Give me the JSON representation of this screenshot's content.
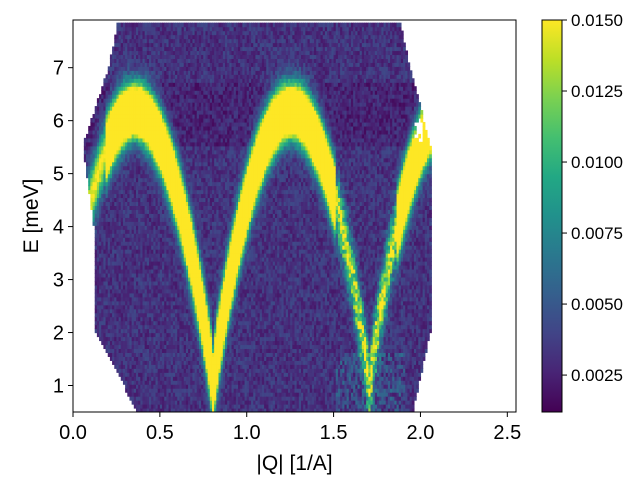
{
  "chart_data": {
    "type": "heatmap",
    "title": "",
    "xlabel": "|Q| [1/A]",
    "ylabel": "E [meV]",
    "xlim": [
      0.0,
      2.55
    ],
    "ylim": [
      0.5,
      7.9
    ],
    "xticks": [
      0.0,
      0.5,
      1.0,
      1.5,
      2.0,
      2.5
    ],
    "xtick_labels": [
      "0.0",
      "0.5",
      "1.0",
      "1.5",
      "2.0",
      "2.5"
    ],
    "yticks": [
      1,
      2,
      3,
      4,
      5,
      6,
      7
    ],
    "ytick_labels": [
      "1",
      "2",
      "3",
      "4",
      "5",
      "6",
      "7"
    ],
    "colormap": "viridis",
    "color_range": [
      0.0012,
      0.015
    ],
    "colorbar_ticks": [
      0.0025,
      0.005,
      0.0075,
      0.01,
      0.0125,
      0.015
    ],
    "colorbar_tick_labels": [
      "0.0025",
      "0.0050",
      "0.0075",
      "0.0100",
      "0.0125",
      "0.0150"
    ],
    "grid": false,
    "dispersion_curve": {
      "description_points_q": [
        0.15,
        0.25,
        0.42,
        0.6,
        0.8,
        1.0,
        1.25,
        1.45,
        1.6,
        1.72,
        1.85,
        2.0
      ],
      "description_points_e": [
        3.8,
        5.6,
        6.1,
        4.8,
        1.2,
        4.8,
        6.1,
        4.8,
        2.0,
        0.6,
        2.5,
        5.8
      ]
    },
    "coverage": {
      "q_min_at_e": [
        [
          0.5,
          0.36
        ],
        [
          2.0,
          0.12
        ],
        [
          3.8,
          0.12
        ],
        [
          5.5,
          0.05
        ],
        [
          7.0,
          0.2
        ],
        [
          7.75,
          0.25
        ]
      ],
      "q_max_at_e": [
        [
          0.5,
          1.95
        ],
        [
          2.0,
          2.05
        ],
        [
          3.8,
          2.05
        ],
        [
          5.5,
          2.05
        ],
        [
          7.0,
          1.93
        ],
        [
          7.75,
          1.88
        ]
      ]
    }
  }
}
